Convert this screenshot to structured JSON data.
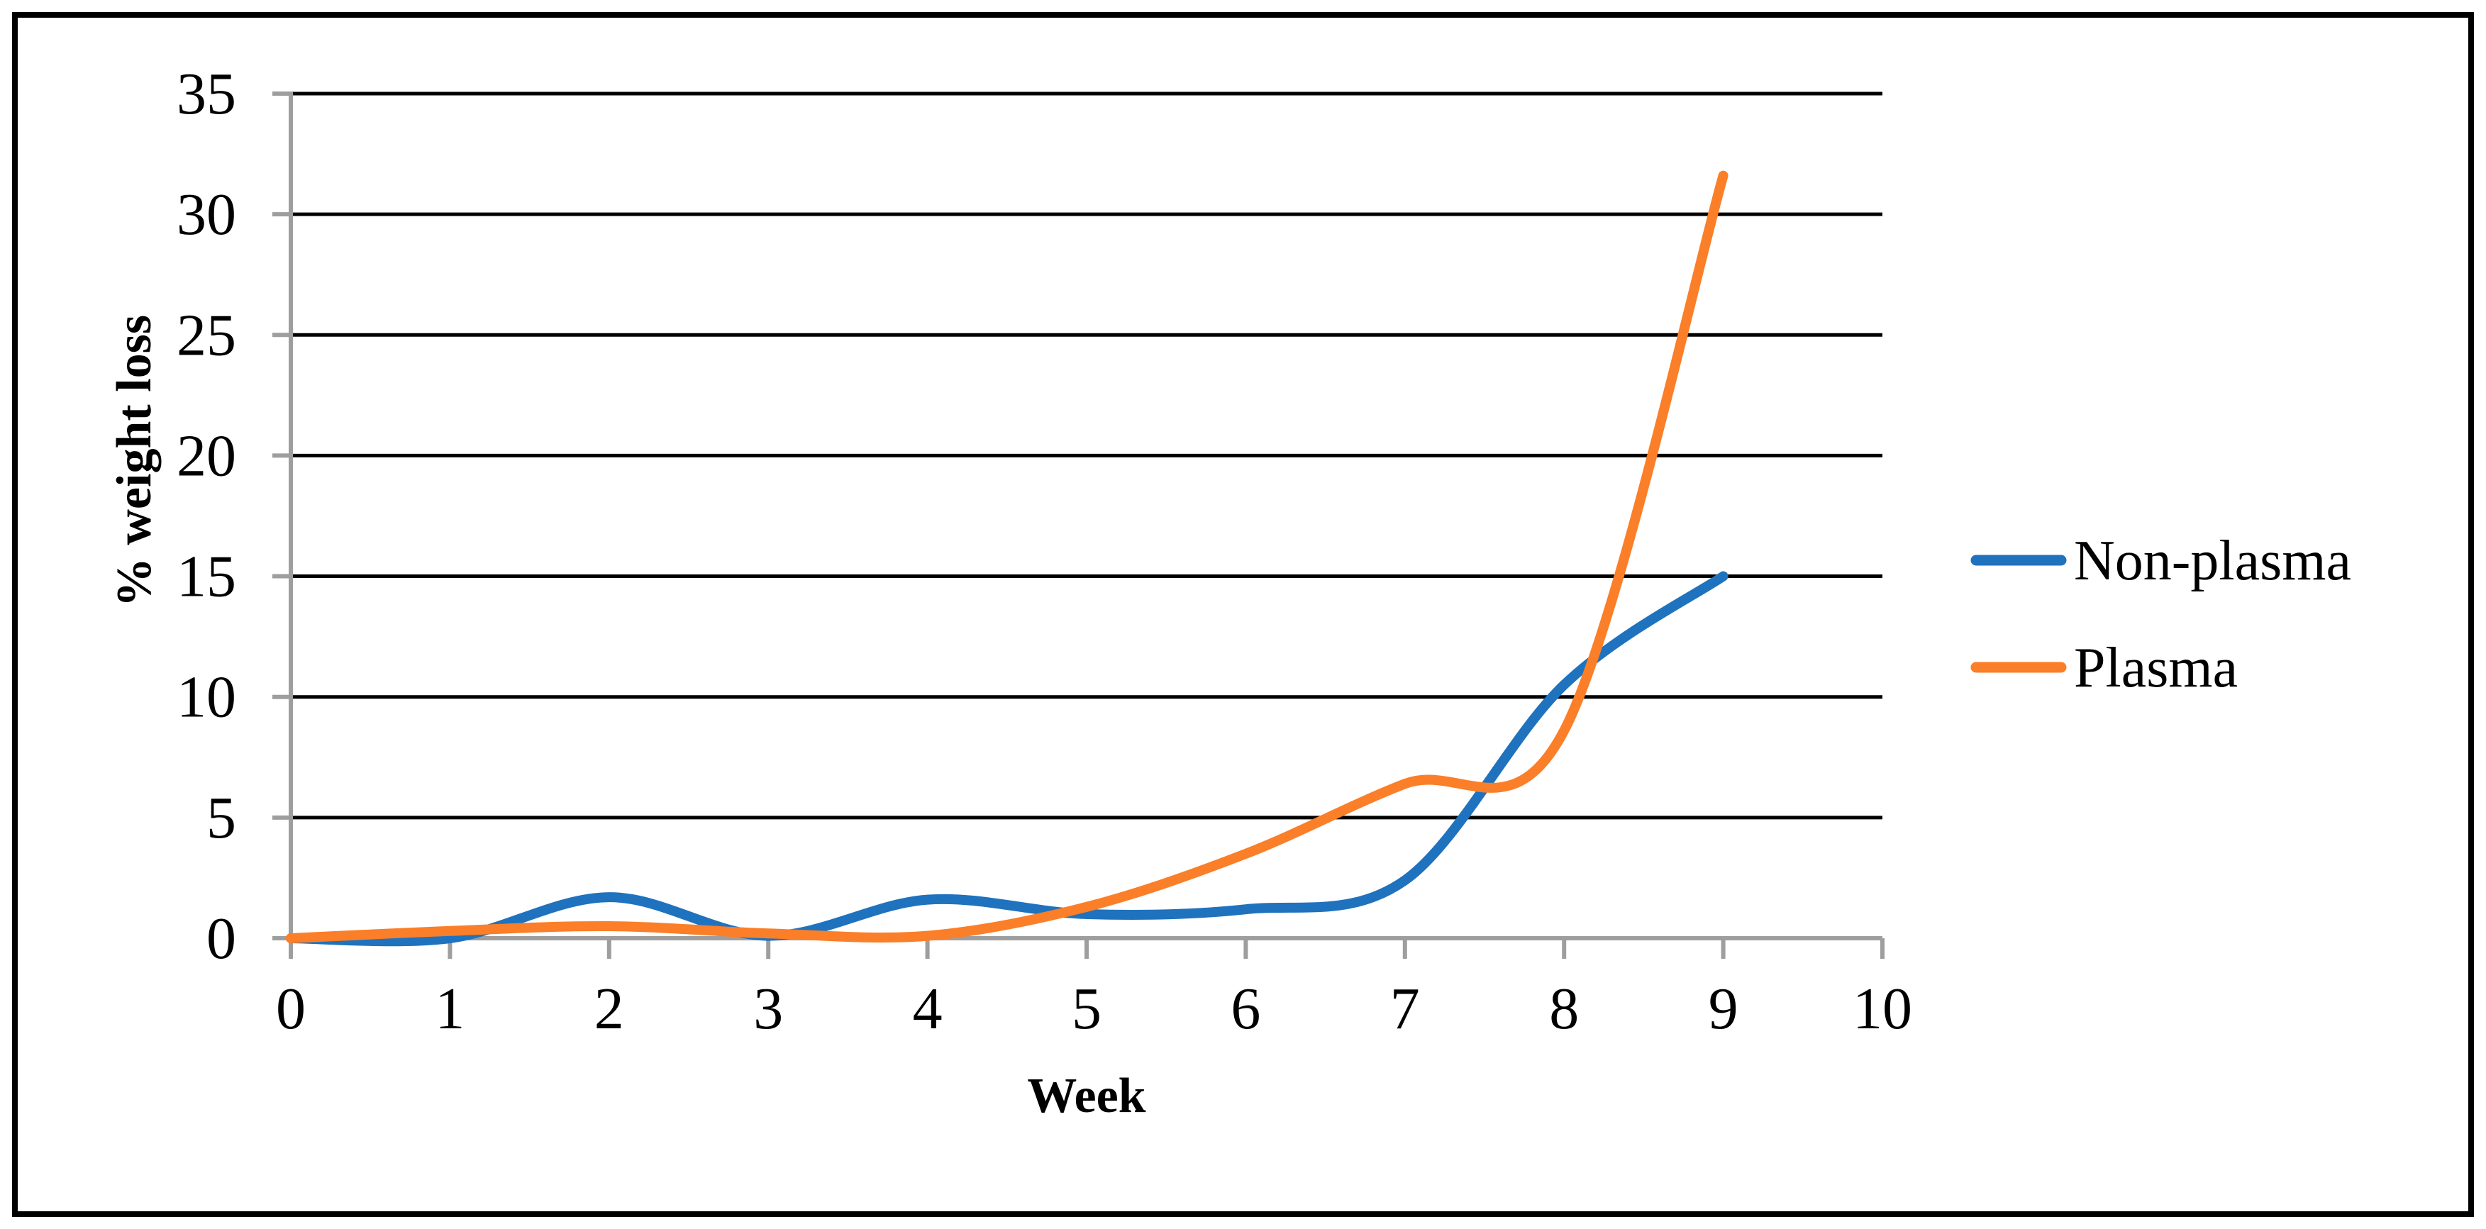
{
  "figure": {
    "background_color": "#FFFFFF",
    "border_color": "#000000"
  },
  "chart_data": {
    "type": "line",
    "title": "",
    "xlabel": "Week",
    "ylabel": "% weight loss",
    "x": [
      0,
      1,
      2,
      3,
      4,
      5,
      6,
      7,
      8,
      9
    ],
    "series": [
      {
        "name": "Non-plasma",
        "color": "#1F72BD",
        "values": [
          0,
          0,
          1.7,
          0.1,
          1.6,
          1.0,
          1.2,
          2.4,
          10.5,
          15.0
        ]
      },
      {
        "name": "Plasma",
        "color": "#FB7E28",
        "values": [
          0,
          0.3,
          0.5,
          0.2,
          0.1,
          1.3,
          3.5,
          6.4,
          8.6,
          31.6
        ]
      }
    ],
    "xlim": [
      0,
      10
    ],
    "ylim": [
      0,
      35
    ],
    "xticks": [
      0,
      1,
      2,
      3,
      4,
      5,
      6,
      7,
      8,
      9,
      10
    ],
    "yticks": [
      0,
      5,
      10,
      15,
      20,
      25,
      30,
      35
    ],
    "grid": "horizontal",
    "gridline_color": "#000000",
    "axis_color": "#9E9E9E",
    "line_style": "smooth",
    "legend_position": "right"
  }
}
